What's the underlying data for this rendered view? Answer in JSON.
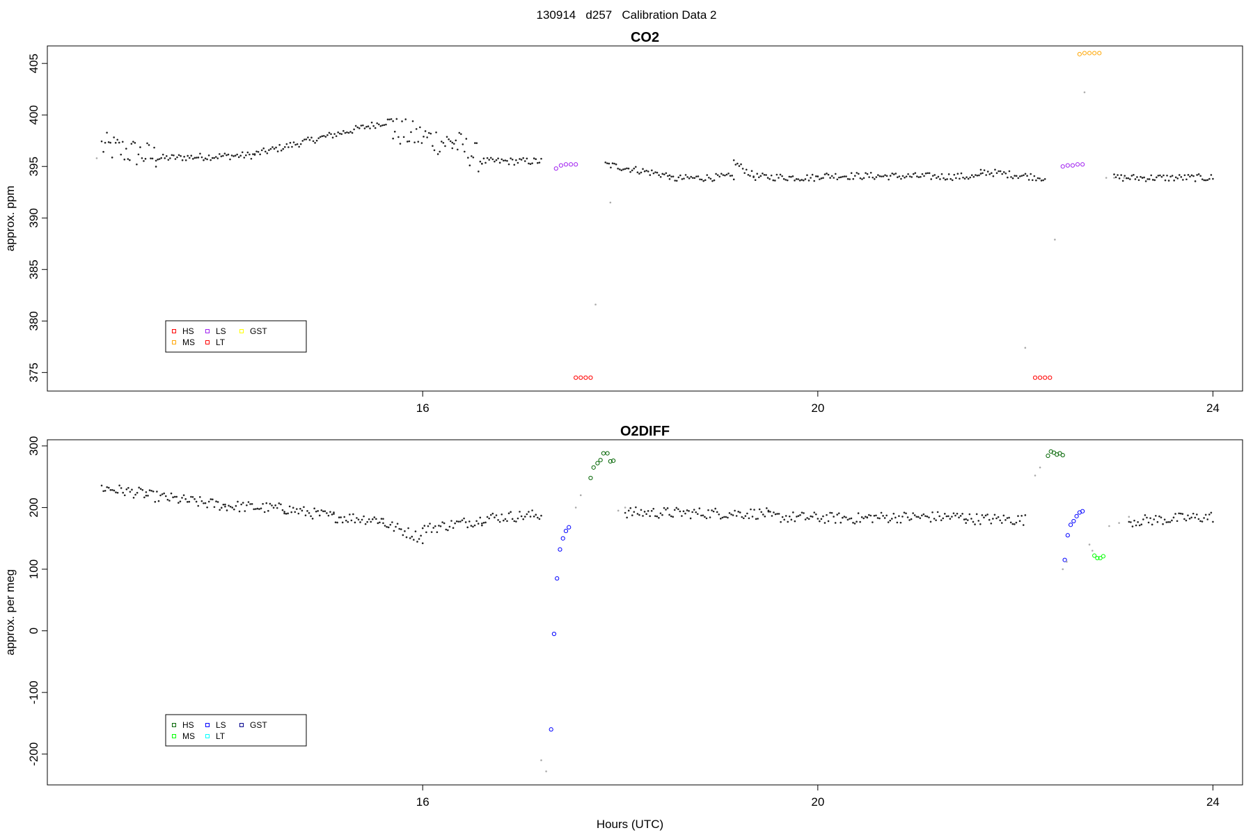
{
  "chart_data": {
    "type": "scatter",
    "title": "130914   d257   Calibration Data 2",
    "xlabel": "Hours (UTC)",
    "x_range": [
      12.2,
      24.3
    ],
    "x_ticks": [
      "16",
      "20",
      "24"
    ],
    "panels": [
      {
        "title": "CO2",
        "ylabel": "approx. ppm",
        "ylim": [
          373.2,
          406.7
        ],
        "y_ticks": [
          "375",
          "380",
          "385",
          "390",
          "395",
          "400",
          "405"
        ],
        "legend": {
          "position": "bottom-left",
          "entries": [
            {
              "label": "HS",
              "color": "#ff0000"
            },
            {
              "label": "LS",
              "color": "#a020f0"
            },
            {
              "label": "GST",
              "color": "#ffff00"
            },
            {
              "label": "MS",
              "color": "#ffa500"
            },
            {
              "label": "LT",
              "color": "#ff0000"
            }
          ]
        },
        "series": [
          {
            "name": "HS",
            "color": "#ff0000",
            "points": [
              [
                17.55,
                374.5
              ],
              [
                17.6,
                374.5
              ],
              [
                17.65,
                374.5
              ],
              [
                17.7,
                374.5
              ],
              [
                22.2,
                374.5
              ],
              [
                22.25,
                374.5
              ],
              [
                22.3,
                374.5
              ],
              [
                22.35,
                374.5
              ]
            ]
          },
          {
            "name": "LS",
            "color": "#a020f0",
            "points": [
              [
                17.35,
                394.8
              ],
              [
                17.4,
                395.1
              ],
              [
                17.45,
                395.2
              ],
              [
                17.5,
                395.2
              ],
              [
                17.55,
                395.2
              ],
              [
                22.48,
                395.0
              ],
              [
                22.53,
                395.1
              ],
              [
                22.58,
                395.1
              ],
              [
                22.63,
                395.2
              ],
              [
                22.68,
                395.2
              ]
            ]
          },
          {
            "name": "MS",
            "color": "#ffa500",
            "points": [
              [
                22.65,
                405.9
              ],
              [
                22.7,
                406.0
              ],
              [
                22.75,
                406.0
              ],
              [
                22.8,
                406.0
              ],
              [
                22.85,
                406.0
              ]
            ]
          },
          {
            "name": "transition",
            "color": "#aaaaaa",
            "points": [
              [
                12.7,
                395.8
              ],
              [
                17.75,
                381.6
              ],
              [
                17.9,
                391.5
              ],
              [
                22.1,
                377.4
              ],
              [
                22.4,
                387.9
              ],
              [
                22.7,
                402.2
              ],
              [
                22.92,
                393.9
              ],
              [
                23.0,
                393.9
              ],
              [
                23.1,
                393.9
              ]
            ]
          }
        ],
        "ambient_segments": [
          {
            "x": [
              12.75,
              13.3
            ],
            "y": [
              397.0,
              395.9
            ]
          },
          {
            "x": [
              13.3,
              14.3
            ],
            "y": [
              395.8,
              396.1
            ]
          },
          {
            "x": [
              14.3,
              15.7
            ],
            "y": [
              396.2,
              399.5
            ]
          },
          {
            "x": [
              15.7,
              16.3
            ],
            "y": [
              398.5,
              397.2
            ]
          },
          {
            "x": [
              16.3,
              16.6
            ],
            "y": [
              397.5,
              395.6
            ]
          },
          {
            "x": [
              16.6,
              17.2
            ],
            "y": [
              395.5,
              395.5
            ]
          },
          {
            "x": [
              17.85,
              18.5
            ],
            "y": [
              395.2,
              394.1
            ]
          },
          {
            "x": [
              18.5,
              19.15
            ],
            "y": [
              393.8,
              394.0
            ]
          },
          {
            "x": [
              19.15,
              19.35
            ],
            "y": [
              395.4,
              394.1
            ]
          },
          {
            "x": [
              19.35,
              20.0
            ],
            "y": [
              394.0,
              393.9
            ]
          },
          {
            "x": [
              20.0,
              21.65
            ],
            "y": [
              394.1,
              394.0
            ]
          },
          {
            "x": [
              21.65,
              22.3
            ],
            "y": [
              394.5,
              393.9
            ]
          },
          {
            "x": [
              23.0,
              24.0
            ],
            "y": [
              393.9,
              393.9
            ]
          }
        ]
      },
      {
        "title": "O2DIFF",
        "ylabel": "approx. per meg",
        "ylim": [
          -250,
          310
        ],
        "y_ticks": [
          "-200",
          "-100",
          "0",
          "100",
          "200",
          "300"
        ],
        "legend": {
          "position": "bottom-left",
          "entries": [
            {
              "label": "HS",
              "color": "#006400"
            },
            {
              "label": "LS",
              "color": "#0000ff"
            },
            {
              "label": "GST",
              "color": "#00008b"
            },
            {
              "label": "MS",
              "color": "#00ff00"
            },
            {
              "label": "LT",
              "color": "#00ffff"
            }
          ]
        },
        "series": [
          {
            "name": "HS",
            "color": "#006400",
            "points": [
              [
                17.7,
                248
              ],
              [
                17.73,
                265
              ],
              [
                17.77,
                272
              ],
              [
                17.8,
                277
              ],
              [
                17.83,
                288
              ],
              [
                17.87,
                288
              ],
              [
                17.9,
                275
              ],
              [
                17.93,
                276
              ],
              [
                22.33,
                284
              ],
              [
                22.36,
                291
              ],
              [
                22.39,
                289
              ],
              [
                22.42,
                286
              ],
              [
                22.45,
                288
              ],
              [
                22.48,
                285
              ]
            ]
          },
          {
            "name": "LS",
            "color": "#0000ff",
            "points": [
              [
                17.3,
                -160
              ],
              [
                17.33,
                -5
              ],
              [
                17.36,
                85
              ],
              [
                17.39,
                132
              ],
              [
                17.42,
                150
              ],
              [
                17.45,
                162
              ],
              [
                17.48,
                168
              ],
              [
                22.5,
                115
              ],
              [
                22.53,
                155
              ],
              [
                22.56,
                172
              ],
              [
                22.59,
                178
              ],
              [
                22.62,
                186
              ],
              [
                22.65,
                192
              ],
              [
                22.68,
                194
              ]
            ]
          },
          {
            "name": "MS",
            "color": "#00ff00",
            "points": [
              [
                22.8,
                122
              ],
              [
                22.83,
                118
              ],
              [
                22.86,
                118
              ],
              [
                22.89,
                121
              ]
            ]
          },
          {
            "name": "transition",
            "color": "#aaaaaa",
            "points": [
              [
                17.2,
                -210
              ],
              [
                17.25,
                -228
              ],
              [
                17.55,
                200
              ],
              [
                17.6,
                220
              ],
              [
                17.98,
                195
              ],
              [
                18.05,
                200
              ],
              [
                22.2,
                252
              ],
              [
                22.25,
                265
              ],
              [
                22.48,
                100
              ],
              [
                22.52,
                112
              ],
              [
                22.75,
                140
              ],
              [
                22.78,
                130
              ],
              [
                22.95,
                170
              ],
              [
                23.05,
                175
              ],
              [
                23.15,
                185
              ]
            ]
          }
        ],
        "ambient_segments": [
          {
            "x": [
              12.75,
              13.2
            ],
            "y": [
              232,
              222
            ]
          },
          {
            "x": [
              13.2,
              14.0
            ],
            "y": [
              220,
              203
            ]
          },
          {
            "x": [
              14.0,
              14.6
            ],
            "y": [
              203,
              198
            ]
          },
          {
            "x": [
              14.6,
              15.1
            ],
            "y": [
              198,
              185
            ]
          },
          {
            "x": [
              15.1,
              15.6
            ],
            "y": [
              185,
              180
            ]
          },
          {
            "x": [
              15.6,
              16.0
            ],
            "y": [
              175,
              150
            ]
          },
          {
            "x": [
              16.0,
              16.6
            ],
            "y": [
              165,
              180
            ]
          },
          {
            "x": [
              16.6,
              17.2
            ],
            "y": [
              183,
              188
            ]
          },
          {
            "x": [
              18.05,
              19.5
            ],
            "y": [
              192,
              190
            ]
          },
          {
            "x": [
              19.5,
              20.5
            ],
            "y": [
              185,
              182
            ]
          },
          {
            "x": [
              20.5,
              21.5
            ],
            "y": [
              184,
              185
            ]
          },
          {
            "x": [
              21.5,
              22.1
            ],
            "y": [
              182,
              180
            ]
          },
          {
            "x": [
              23.15,
              24.0
            ],
            "y": [
              178,
              185
            ]
          }
        ]
      }
    ]
  }
}
